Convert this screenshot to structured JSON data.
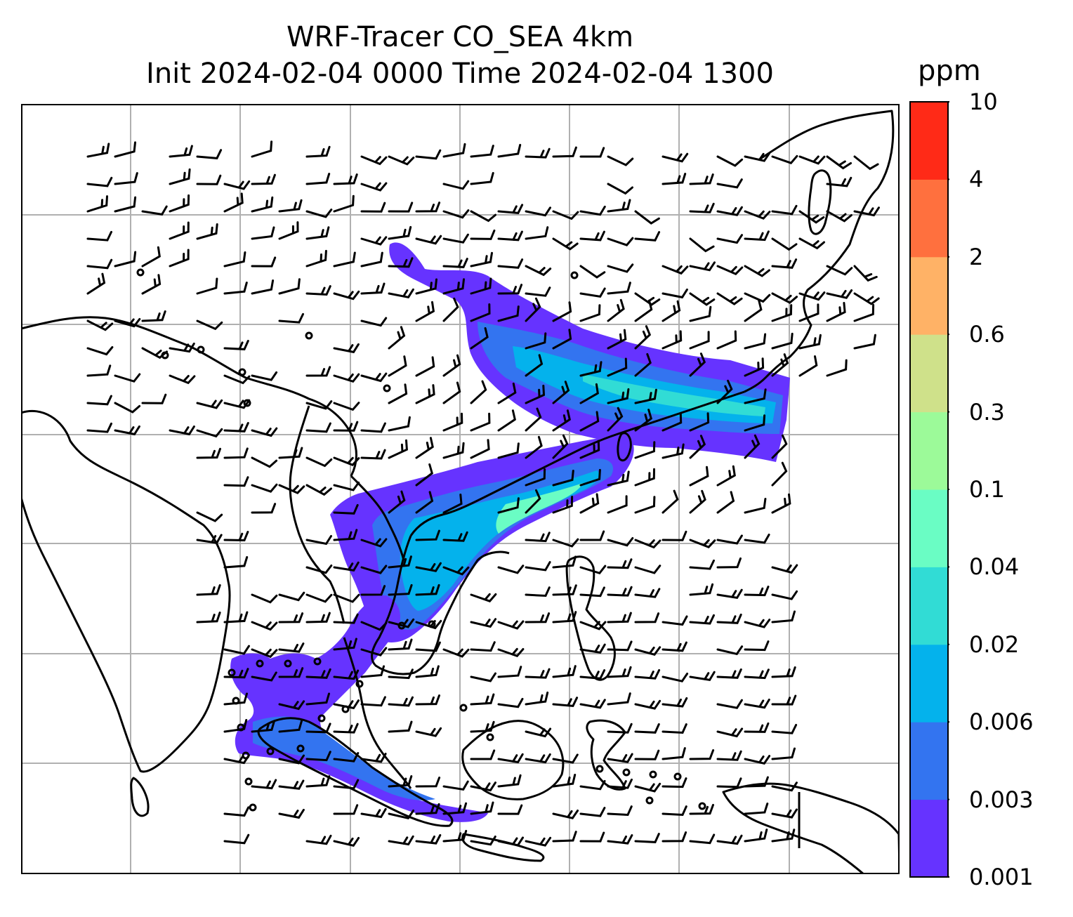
{
  "title": {
    "line1": "WRF-Tracer CO_SEA 4km",
    "line2": "Init 2024-02-04 0000 Time 2024-02-04 1300"
  },
  "colorbar": {
    "unit": "ppm",
    "levels": [
      "0.001",
      "0.003",
      "0.006",
      "0.02",
      "0.04",
      "0.1",
      "0.3",
      "0.6",
      "2",
      "4",
      "10"
    ],
    "colors": [
      "#6633ff",
      "#3374f0",
      "#04b2ec",
      "#31dcd5",
      "#6afdc4",
      "#9cfa99",
      "#cfe18a",
      "#ffb266",
      "#ff703e",
      "#ff2a17"
    ]
  },
  "map": {
    "field": "CO tracer concentration with wind barbs",
    "gridlines": true,
    "coastline_color": "#000000",
    "grid_color": "#b0b0b0"
  }
}
